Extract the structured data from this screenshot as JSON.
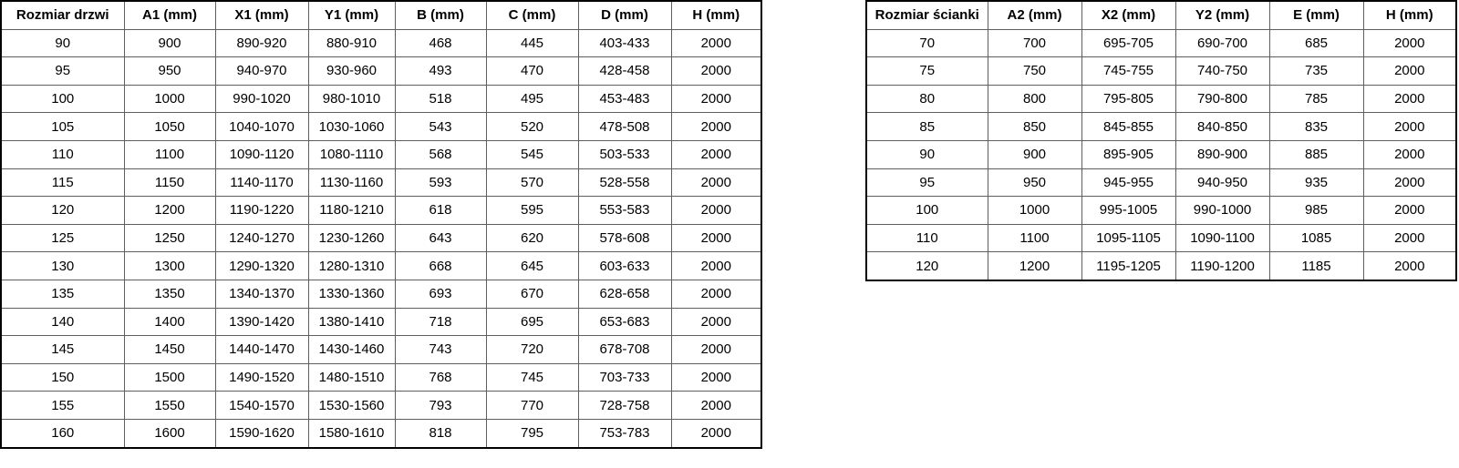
{
  "colors": {
    "background": "#ffffff",
    "outer_border": "#000000",
    "inner_border": "#5f5f5f",
    "text": "#000000"
  },
  "door_table": {
    "headers": [
      "Rozmiar drzwi",
      "A1 (mm)",
      "X1 (mm)",
      "Y1 (mm)",
      "B (mm)",
      "C (mm)",
      "D (mm)",
      "H (mm)"
    ],
    "rows": [
      [
        "90",
        "900",
        "890-920",
        "880-910",
        "468",
        "445",
        "403-433",
        "2000"
      ],
      [
        "95",
        "950",
        "940-970",
        "930-960",
        "493",
        "470",
        "428-458",
        "2000"
      ],
      [
        "100",
        "1000",
        "990-1020",
        "980-1010",
        "518",
        "495",
        "453-483",
        "2000"
      ],
      [
        "105",
        "1050",
        "1040-1070",
        "1030-1060",
        "543",
        "520",
        "478-508",
        "2000"
      ],
      [
        "110",
        "1100",
        "1090-1120",
        "1080-1110",
        "568",
        "545",
        "503-533",
        "2000"
      ],
      [
        "115",
        "1150",
        "1140-1170",
        "1130-1160",
        "593",
        "570",
        "528-558",
        "2000"
      ],
      [
        "120",
        "1200",
        "1190-1220",
        "1180-1210",
        "618",
        "595",
        "553-583",
        "2000"
      ],
      [
        "125",
        "1250",
        "1240-1270",
        "1230-1260",
        "643",
        "620",
        "578-608",
        "2000"
      ],
      [
        "130",
        "1300",
        "1290-1320",
        "1280-1310",
        "668",
        "645",
        "603-633",
        "2000"
      ],
      [
        "135",
        "1350",
        "1340-1370",
        "1330-1360",
        "693",
        "670",
        "628-658",
        "2000"
      ],
      [
        "140",
        "1400",
        "1390-1420",
        "1380-1410",
        "718",
        "695",
        "653-683",
        "2000"
      ],
      [
        "145",
        "1450",
        "1440-1470",
        "1430-1460",
        "743",
        "720",
        "678-708",
        "2000"
      ],
      [
        "150",
        "1500",
        "1490-1520",
        "1480-1510",
        "768",
        "745",
        "703-733",
        "2000"
      ],
      [
        "155",
        "1550",
        "1540-1570",
        "1530-1560",
        "793",
        "770",
        "728-758",
        "2000"
      ],
      [
        "160",
        "1600",
        "1590-1620",
        "1580-1610",
        "818",
        "795",
        "753-783",
        "2000"
      ]
    ]
  },
  "wall_table": {
    "headers": [
      "Rozmiar ścianki",
      "A2 (mm)",
      "X2 (mm)",
      "Y2 (mm)",
      "E (mm)",
      "H (mm)"
    ],
    "rows": [
      [
        "70",
        "700",
        "695-705",
        "690-700",
        "685",
        "2000"
      ],
      [
        "75",
        "750",
        "745-755",
        "740-750",
        "735",
        "2000"
      ],
      [
        "80",
        "800",
        "795-805",
        "790-800",
        "785",
        "2000"
      ],
      [
        "85",
        "850",
        "845-855",
        "840-850",
        "835",
        "2000"
      ],
      [
        "90",
        "900",
        "895-905",
        "890-900",
        "885",
        "2000"
      ],
      [
        "95",
        "950",
        "945-955",
        "940-950",
        "935",
        "2000"
      ],
      [
        "100",
        "1000",
        "995-1005",
        "990-1000",
        "985",
        "2000"
      ],
      [
        "110",
        "1100",
        "1095-1105",
        "1090-1100",
        "1085",
        "2000"
      ],
      [
        "120",
        "1200",
        "1195-1205",
        "1190-1200",
        "1185",
        "2000"
      ]
    ]
  }
}
